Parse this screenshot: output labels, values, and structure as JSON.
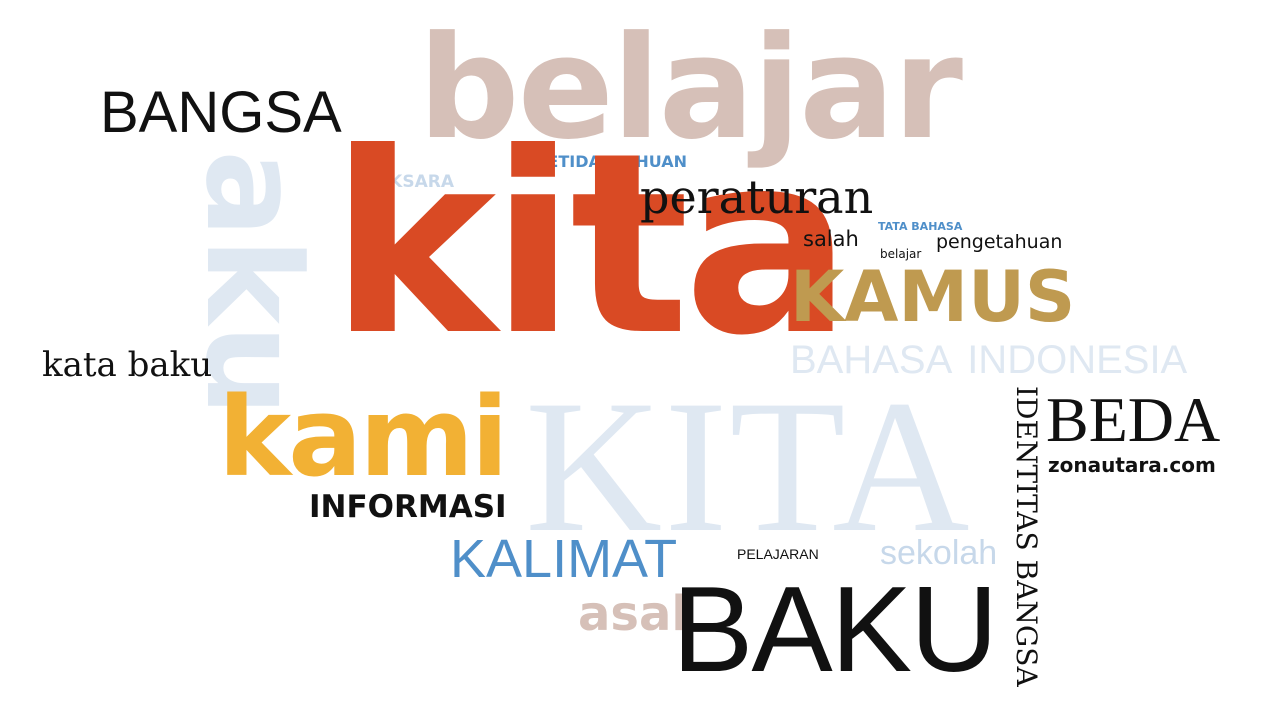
{
  "words": {
    "belajar_big": "belajar",
    "bangsa": "BANGSA",
    "ketidaktahuan": "KETIDAKTAHUAN",
    "aksara": "AKSARA",
    "aku": "aku",
    "kita_big": "kita",
    "peraturan": "peraturan",
    "tata_bahasa": "TATA BAHASA",
    "salah": "salah",
    "belajar_small": "belajar",
    "pengetahuan": "pengetahuan",
    "kamus": "KAMUS",
    "bahasa_indonesia": "BAHASA  INDONESIA",
    "kata_baku": "kata baku",
    "identitas_bangsa": "IDENTITAS BANGSA",
    "kita_caps": "KITA",
    "kami": "kami",
    "beda": "BEDA",
    "zonautara": "zonautara.com",
    "informasi": "INFORMASI",
    "kalimat": "KALIMAT",
    "pelajaran": "PELAJARAN",
    "sekolah": "sekolah",
    "asal": "asal",
    "baku": "BAKU"
  },
  "colors": {
    "black": "#111111",
    "orange_red": "#d94a24",
    "light_blue": "#c7d8ea",
    "pale_blue": "#dfe8f2",
    "blue": "#4f8fc9",
    "rose_tan": "#d6c0b8",
    "gold": "#bf9a50",
    "amber": "#f2b134",
    "gray_blue": "#b9c7d6"
  }
}
